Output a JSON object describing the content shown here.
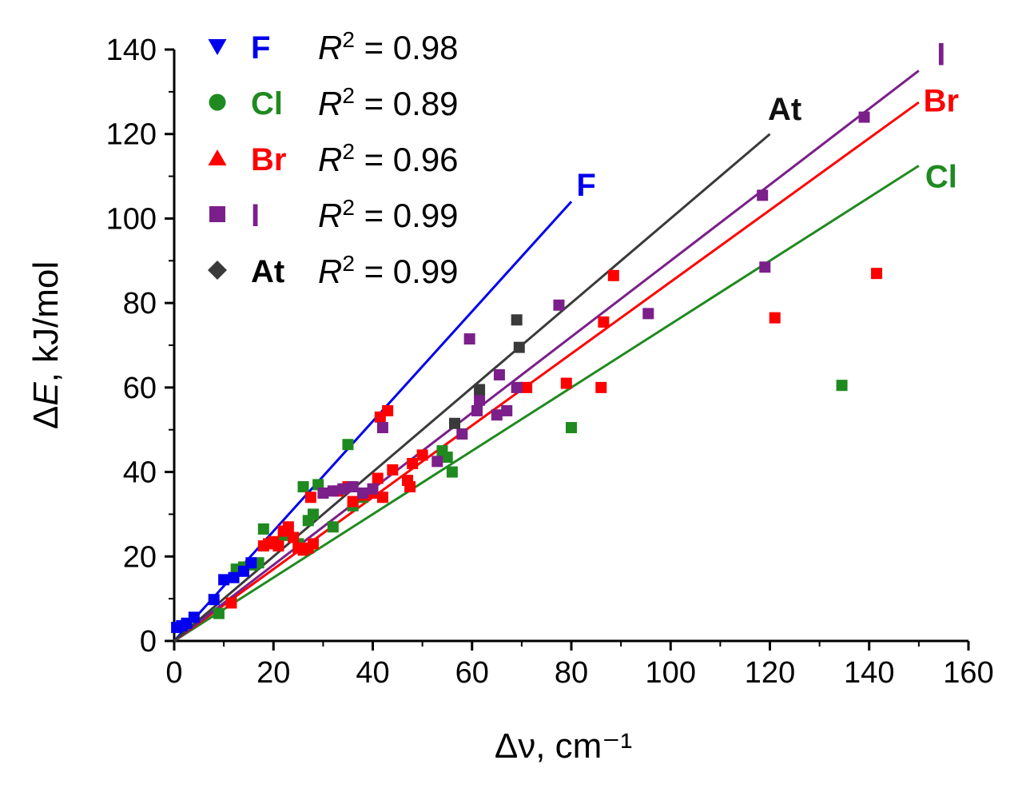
{
  "chart_data": {
    "type": "scatter",
    "title": "",
    "xlabel": "Δν, cm⁻¹",
    "ylabel_symbol": "Δ",
    "ylabel_var": "E",
    "ylabel_rest": ", kJ/mol",
    "xlim": [
      0,
      160
    ],
    "ylim": [
      0,
      140
    ],
    "xticks": [
      0,
      20,
      40,
      60,
      80,
      100,
      120,
      140,
      160
    ],
    "yticks": [
      0,
      20,
      40,
      60,
      80,
      100,
      120,
      140
    ],
    "xtick_labels": [
      "0",
      "20",
      "40",
      "60",
      "80",
      "100",
      "120",
      "140",
      "160"
    ],
    "ytick_labels": [
      "0",
      "20",
      "40",
      "60",
      "80",
      "100",
      "120",
      "140"
    ],
    "legend_position": "top-left",
    "series": [
      {
        "name": "F",
        "color": "#0000ee",
        "marker": "triangle-down",
        "r2": "R² = 0.98",
        "r2_prefix": "R",
        "r2_sup": "2",
        "r2_value": " = 0.98",
        "fit": {
          "x": [
            0,
            80
          ],
          "y": [
            0,
            104
          ]
        },
        "points": [
          [
            0.5,
            3.2
          ],
          [
            1.5,
            3.6
          ],
          [
            2.5,
            4.2
          ],
          [
            4,
            5.6
          ],
          [
            8,
            9.8
          ],
          [
            10,
            14.5
          ],
          [
            12,
            15
          ],
          [
            14,
            16.5
          ],
          [
            15.5,
            18.5
          ]
        ]
      },
      {
        "name": "Cl",
        "color": "#1f8a1f",
        "marker": "circle",
        "r2": "R² = 0.89",
        "r2_prefix": "R",
        "r2_sup": "2",
        "r2_value": " = 0.89",
        "fit": {
          "x": [
            0,
            150
          ],
          "y": [
            0,
            112.5
          ]
        },
        "points": [
          [
            9,
            6.5
          ],
          [
            12.5,
            17
          ],
          [
            14,
            17.5
          ],
          [
            16,
            18
          ],
          [
            17,
            18.5
          ],
          [
            18,
            26.5
          ],
          [
            22,
            25
          ],
          [
            25,
            23
          ],
          [
            26,
            36.5
          ],
          [
            27,
            28.5
          ],
          [
            28,
            30
          ],
          [
            29,
            37
          ],
          [
            32,
            27
          ],
          [
            35,
            46.5
          ],
          [
            36,
            32
          ],
          [
            38,
            34
          ],
          [
            54,
            45
          ],
          [
            55,
            43.5
          ],
          [
            56,
            40
          ],
          [
            80,
            50.5
          ],
          [
            134.5,
            60.5
          ]
        ]
      },
      {
        "name": "Br",
        "color": "#ff0000",
        "marker": "triangle-up",
        "r2": "R² = 0.96",
        "r2_prefix": "R",
        "r2_sup": "2",
        "r2_value": " = 0.96",
        "fit": {
          "x": [
            0,
            150
          ],
          "y": [
            0,
            127.5
          ]
        },
        "points": [
          [
            11.5,
            9
          ],
          [
            18,
            22.5
          ],
          [
            19,
            23
          ],
          [
            20,
            23.5
          ],
          [
            21,
            22.5
          ],
          [
            22,
            26
          ],
          [
            23,
            27
          ],
          [
            24,
            24.5
          ],
          [
            25,
            22
          ],
          [
            26,
            21.5
          ],
          [
            27,
            22
          ],
          [
            27.5,
            34
          ],
          [
            28,
            23
          ],
          [
            33,
            35.5
          ],
          [
            35,
            36.5
          ],
          [
            36,
            33
          ],
          [
            38,
            34.5
          ],
          [
            40,
            35
          ],
          [
            41,
            38.5
          ],
          [
            41.5,
            53
          ],
          [
            42,
            34
          ],
          [
            43,
            54.5
          ],
          [
            44,
            40.5
          ],
          [
            47,
            38
          ],
          [
            47.5,
            36.5
          ],
          [
            48,
            42
          ],
          [
            50,
            44
          ],
          [
            71,
            60
          ],
          [
            79,
            61
          ],
          [
            86,
            60
          ],
          [
            86.5,
            75.5
          ],
          [
            88.5,
            86.5
          ],
          [
            121,
            76.5
          ],
          [
            141.5,
            87
          ]
        ]
      },
      {
        "name": "I",
        "color": "#7b1f8a",
        "marker": "square",
        "r2": "R² = 0.99",
        "r2_prefix": "R",
        "r2_sup": "2",
        "r2_value": " = 0.99",
        "fit": {
          "x": [
            0,
            150
          ],
          "y": [
            0,
            135
          ]
        },
        "points": [
          [
            30,
            35
          ],
          [
            32,
            35.5
          ],
          [
            34,
            36
          ],
          [
            36,
            36.5
          ],
          [
            38,
            35
          ],
          [
            40,
            36
          ],
          [
            42,
            50.5
          ],
          [
            53,
            42.5
          ],
          [
            58,
            49
          ],
          [
            59.5,
            71.5
          ],
          [
            61,
            54.5
          ],
          [
            61.5,
            57
          ],
          [
            65,
            53.5
          ],
          [
            65.5,
            63
          ],
          [
            67,
            54.5
          ],
          [
            69,
            60
          ],
          [
            77.5,
            79.5
          ],
          [
            95.5,
            77.5
          ],
          [
            118.5,
            105.5
          ],
          [
            119,
            88.5
          ],
          [
            139,
            124
          ]
        ]
      },
      {
        "name": "At",
        "color": "#3a3a3a",
        "marker": "diamond",
        "r2": "R² = 0.99",
        "r2_prefix": "R",
        "r2_sup": "2",
        "r2_value": " = 0.99",
        "fit": {
          "x": [
            0,
            120
          ],
          "y": [
            0,
            120
          ]
        },
        "points": [
          [
            56.5,
            51.5
          ],
          [
            61.5,
            59.5
          ],
          [
            69,
            76
          ],
          [
            69.5,
            69.5
          ]
        ]
      }
    ],
    "line_labels": [
      {
        "text": "F",
        "color": "#0000ee",
        "x": 83,
        "y": 108
      },
      {
        "text": "At",
        "color": "#111111",
        "x": 123,
        "y": 126
      },
      {
        "text": "I",
        "color": "#7b1f8a",
        "x": 154.5,
        "y": 139
      },
      {
        "text": "Br",
        "color": "#ff0000",
        "x": 154.5,
        "y": 128
      },
      {
        "text": "Cl",
        "color": "#1f8a1f",
        "x": 154.5,
        "y": 110
      }
    ]
  }
}
